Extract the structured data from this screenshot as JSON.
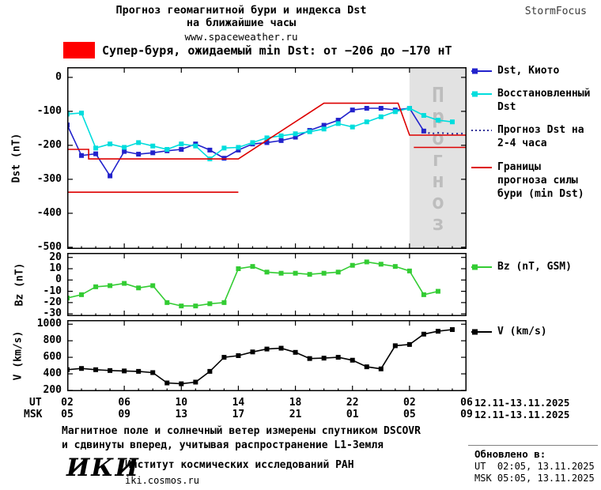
{
  "header": {
    "title_line1": "Прогноз геомагнитной бури и индекса Dst",
    "title_line2": "на ближайшие часы",
    "site": "www.spaceweather.ru",
    "brand": "StormFocus"
  },
  "alert": {
    "label": "Супер-буря, ожидаемый min Dst: от −206 до −170 нТ"
  },
  "forecast_overlay": {
    "label": "Прогноз"
  },
  "legends": {
    "dst_items": [
      "Dst, Киото",
      "Восстановленный Dst",
      "Прогноз Dst на 2-4 часа",
      "Границы прогноза силы бури (min Dst)"
    ],
    "bz": "Bz (nT, GSM)",
    "v": "V (km/s)"
  },
  "axis": {
    "ut_label": "UT",
    "msk_label": "MSK",
    "tick_hours": [
      2,
      6,
      10,
      14,
      18,
      22,
      26,
      30
    ],
    "ut_ticks": [
      "02",
      "06",
      "10",
      "14",
      "18",
      "22",
      "02",
      "06"
    ],
    "msk_ticks": [
      "05",
      "09",
      "13",
      "17",
      "21",
      "01",
      "05",
      "09"
    ],
    "ut_date": "12.11-13.11.2025",
    "msk_date": "12.11-13.11.2025"
  },
  "footer": {
    "note_line1": "Магнитное поле и солнечный ветер измерены спутником DSCOVR",
    "note_line2": "и сдвинуты вперед, учитывая распространение L1-Земля",
    "logo": "ИКИ",
    "org": "Институт космических исследований РАН",
    "url": "iki.cosmos.ru",
    "updated_title": "Обновлено в:",
    "updated_ut": "UT  02:05, 13.11.2025",
    "updated_msk": "MSK 05:05, 13.11.2025"
  },
  "colors": {
    "alert_swatch": "#ff0000",
    "dst_kyoto": "#2222cc",
    "dst_restored": "#00dddd",
    "dst_forecast": "#333399",
    "bounds": "#dd0000",
    "bz": "#33cc33",
    "v": "#000000",
    "forecast_fill": "#e2e2e2",
    "forecast_text": "#bdbdbd"
  },
  "chart_data": [
    {
      "type": "line",
      "ylabel": "Dst (nT)",
      "ylim": [
        -505,
        30
      ],
      "yticks": [
        0,
        -100,
        -200,
        -300,
        -400,
        -500
      ],
      "xlim": [
        2,
        30
      ],
      "forecast_region": [
        26,
        30
      ],
      "series": [
        {
          "name": "Dst, Киото",
          "color": "#2222cc",
          "marker": "square",
          "points": [
            [
              2,
              -140
            ],
            [
              3,
              -230
            ],
            [
              4,
              -225
            ],
            [
              5,
              -290
            ],
            [
              6,
              -218
            ],
            [
              7,
              -226
            ],
            [
              8,
              -222
            ],
            [
              9,
              -216
            ],
            [
              10,
              -212
            ],
            [
              11,
              -196
            ],
            [
              12,
              -214
            ],
            [
              13,
              -238
            ],
            [
              14,
              -214
            ],
            [
              15,
              -196
            ],
            [
              16,
              -192
            ],
            [
              17,
              -186
            ],
            [
              18,
              -176
            ],
            [
              19,
              -156
            ],
            [
              20,
              -141
            ],
            [
              21,
              -126
            ],
            [
              22,
              -96
            ],
            [
              23,
              -91
            ],
            [
              24,
              -91
            ],
            [
              25,
              -96
            ],
            [
              26,
              -91
            ],
            [
              27,
              -158
            ]
          ]
        },
        {
          "name": "Восстановленный Dst",
          "color": "#00dddd",
          "marker": "square",
          "points": [
            [
              2,
              -108
            ],
            [
              3,
              -105
            ],
            [
              4,
              -208
            ],
            [
              5,
              -196
            ],
            [
              6,
              -206
            ],
            [
              7,
              -192
            ],
            [
              8,
              -202
            ],
            [
              9,
              -212
            ],
            [
              10,
              -196
            ],
            [
              11,
              -202
            ],
            [
              12,
              -240
            ],
            [
              13,
              -208
            ],
            [
              14,
              -206
            ],
            [
              15,
              -192
            ],
            [
              16,
              -178
            ],
            [
              17,
              -172
            ],
            [
              18,
              -166
            ],
            [
              19,
              -160
            ],
            [
              20,
              -152
            ],
            [
              21,
              -136
            ],
            [
              22,
              -146
            ],
            [
              23,
              -131
            ],
            [
              24,
              -116
            ],
            [
              25,
              -101
            ],
            [
              26,
              -91
            ],
            [
              27,
              -112
            ],
            [
              28,
              -126
            ],
            [
              29,
              -131
            ]
          ]
        },
        {
          "name": "Прогноз Dst на 2-4 часа",
          "color": "#333399",
          "style": "dotted",
          "lw": 2.2,
          "points": [
            [
              27,
              -158
            ],
            [
              27.5,
              -166
            ],
            [
              28,
              -163
            ],
            [
              29,
              -166
            ],
            [
              30,
              -165
            ]
          ]
        },
        {
          "name": "Границы прогноза силы бури (min Dst)",
          "color": "#dd0000",
          "points": [
            [
              2,
              -212
            ],
            [
              3.5,
              -212
            ],
            [
              3.5,
              -240
            ],
            [
              14,
              -240
            ],
            [
              20,
              -76
            ],
            [
              25.2,
              -76
            ],
            [
              26,
              -170
            ],
            [
              30,
              -170
            ]
          ]
        },
        {
          "name": "Границы прогноза силы бури (min Dst)",
          "color": "#dd0000",
          "points": [
            [
              2,
              -338
            ],
            [
              14,
              -338
            ]
          ]
        },
        {
          "name": "Границы прогноза силы бури (min Dst)",
          "color": "#dd0000",
          "points": [
            [
              26.3,
              -206
            ],
            [
              30,
              -206
            ]
          ]
        }
      ]
    },
    {
      "type": "line",
      "ylabel": "Bz (nT)",
      "ylim": [
        -32,
        24
      ],
      "yticks": [
        20,
        10,
        0,
        -10,
        -20,
        -30
      ],
      "xlim": [
        2,
        30
      ],
      "series": [
        {
          "name": "Bz (nT, GSM)",
          "color": "#33cc33",
          "marker": "square",
          "points": [
            [
              2,
              -16
            ],
            [
              3,
              -13
            ],
            [
              4,
              -6
            ],
            [
              5,
              -5
            ],
            [
              6,
              -3
            ],
            [
              7,
              -7
            ],
            [
              8,
              -5
            ],
            [
              9,
              -20
            ],
            [
              10,
              -23
            ],
            [
              11,
              -23
            ],
            [
              12,
              -21
            ],
            [
              13,
              -20
            ],
            [
              14,
              10
            ],
            [
              15,
              12
            ],
            [
              16,
              7
            ],
            [
              17,
              6
            ],
            [
              18,
              6
            ],
            [
              19,
              5
            ],
            [
              20,
              6
            ],
            [
              21,
              7
            ],
            [
              22,
              13
            ],
            [
              23,
              16
            ],
            [
              24,
              14
            ],
            [
              25,
              12
            ],
            [
              26,
              8
            ],
            [
              27,
              -13
            ],
            [
              28,
              -10
            ]
          ]
        }
      ]
    },
    {
      "type": "line",
      "ylabel": "V (km/s)",
      "ylim": [
        190,
        1050
      ],
      "yticks": [
        1000,
        800,
        600,
        400,
        200
      ],
      "xlim": [
        2,
        30
      ],
      "series": [
        {
          "name": "V (km/s)",
          "color": "#000000",
          "marker": "square",
          "points": [
            [
              2,
              450
            ],
            [
              3,
              465
            ],
            [
              4,
              450
            ],
            [
              5,
              440
            ],
            [
              6,
              435
            ],
            [
              7,
              430
            ],
            [
              8,
              415
            ],
            [
              9,
              290
            ],
            [
              10,
              280
            ],
            [
              11,
              300
            ],
            [
              12,
              430
            ],
            [
              13,
              600
            ],
            [
              14,
              620
            ],
            [
              15,
              665
            ],
            [
              16,
              700
            ],
            [
              17,
              710
            ],
            [
              18,
              660
            ],
            [
              19,
              585
            ],
            [
              20,
              590
            ],
            [
              21,
              600
            ],
            [
              22,
              565
            ],
            [
              23,
              485
            ],
            [
              24,
              460
            ],
            [
              25,
              740
            ],
            [
              26,
              755
            ],
            [
              27,
              880
            ],
            [
              28,
              915
            ],
            [
              29,
              935
            ]
          ]
        }
      ]
    }
  ]
}
